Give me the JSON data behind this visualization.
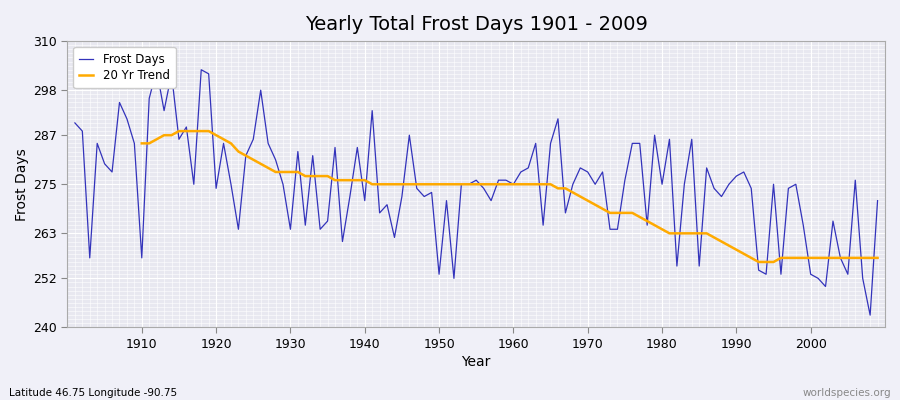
{
  "title": "Yearly Total Frost Days 1901 - 2009",
  "xlabel": "Year",
  "ylabel": "Frost Days",
  "footnote_left": "Latitude 46.75 Longitude -90.75",
  "footnote_right": "worldspecies.org",
  "ylim": [
    240,
    310
  ],
  "yticks": [
    240,
    252,
    263,
    275,
    287,
    298,
    310
  ],
  "bg_color": "#f0f0f8",
  "plot_bg": "#e8e8f0",
  "line_color": "#3333bb",
  "trend_color": "#ffaa00",
  "legend_labels": [
    "Frost Days",
    "20 Yr Trend"
  ],
  "frost_days": [
    290,
    288,
    257,
    285,
    280,
    278,
    295,
    291,
    285,
    257,
    296,
    303,
    293,
    302,
    286,
    289,
    275,
    303,
    302,
    274,
    285,
    275,
    264,
    282,
    286,
    298,
    285,
    281,
    275,
    264,
    283,
    265,
    282,
    264,
    266,
    284,
    261,
    272,
    284,
    271,
    293,
    268,
    270,
    262,
    272,
    287,
    274,
    272,
    273,
    253,
    271,
    252,
    275,
    275,
    276,
    274,
    271,
    276,
    276,
    275,
    278,
    279,
    285,
    265,
    285,
    291,
    268,
    275,
    279,
    278,
    275,
    278,
    264,
    264,
    276,
    285,
    285,
    265,
    287,
    275,
    286,
    255,
    275,
    286,
    255,
    279,
    274,
    272,
    275,
    277,
    278,
    274,
    254,
    253,
    275,
    253,
    274,
    275,
    265,
    253,
    252,
    250,
    266,
    257,
    253,
    276,
    252,
    243,
    271
  ],
  "trend_days": [
    null,
    null,
    null,
    null,
    null,
    null,
    null,
    null,
    null,
    285,
    285,
    286,
    287,
    287,
    288,
    288,
    288,
    288,
    288,
    287,
    286,
    285,
    283,
    282,
    281,
    280,
    279,
    278,
    278,
    278,
    278,
    277,
    277,
    277,
    277,
    276,
    276,
    276,
    276,
    276,
    275,
    275,
    275,
    275,
    275,
    275,
    275,
    275,
    275,
    275,
    275,
    275,
    275,
    275,
    275,
    275,
    275,
    275,
    275,
    275,
    275,
    275,
    275,
    275,
    275,
    274,
    274,
    273,
    272,
    271,
    270,
    269,
    268,
    268,
    268,
    268,
    267,
    266,
    265,
    264,
    263,
    263,
    263,
    263,
    263,
    263,
    262,
    261,
    260,
    259,
    258,
    257,
    256,
    256,
    256,
    257,
    257,
    257,
    257,
    257,
    257,
    257,
    257,
    257,
    257,
    257,
    257,
    257,
    257
  ]
}
